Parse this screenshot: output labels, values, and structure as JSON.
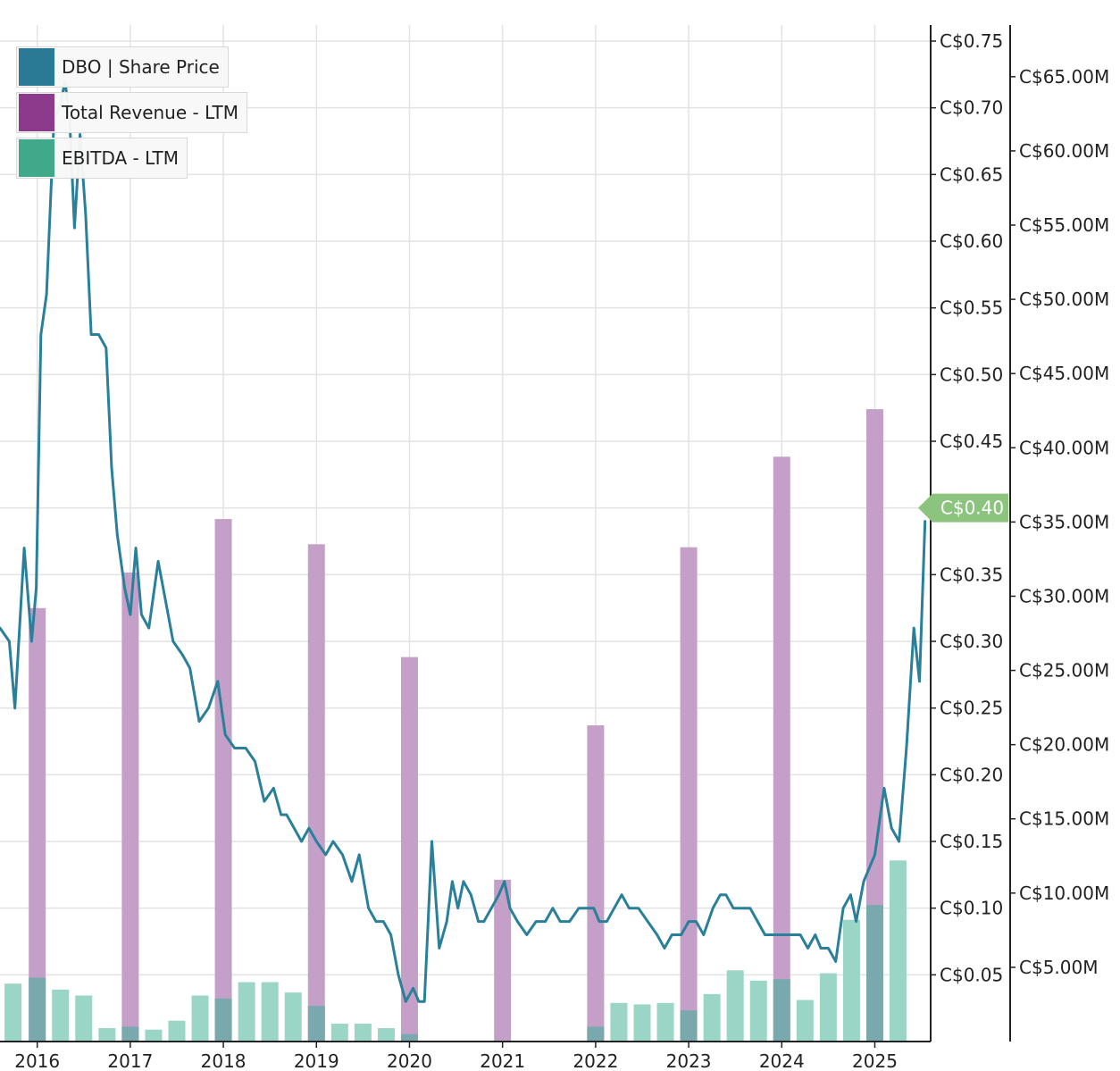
{
  "chart_data": {
    "type": "bar",
    "title": "",
    "xlabel": "",
    "ylabel": "",
    "x_range": [
      2015.7,
      2025.7
    ],
    "x_ticks": [
      "2016",
      "2017",
      "2018",
      "2019",
      "2020",
      "2021",
      "2022",
      "2023",
      "2024",
      "2025"
    ],
    "y_left": {
      "range": [
        0.0,
        0.75
      ],
      "ticks": [
        0.05,
        0.1,
        0.15,
        0.2,
        0.25,
        0.3,
        0.35,
        0.4,
        0.45,
        0.5,
        0.55,
        0.6,
        0.65,
        0.7,
        0.75
      ],
      "tick_labels": [
        "C$0.05",
        "C$0.10",
        "C$0.15",
        "C$0.20",
        "C$0.25",
        "C$0.30",
        "C$0.35",
        "C$0.40",
        "C$0.45",
        "C$0.50",
        "C$0.55",
        "C$0.60",
        "C$0.65",
        "C$0.70",
        "C$0.75"
      ]
    },
    "y_right": {
      "range": [
        0,
        68
      ],
      "ticks": [
        5,
        10,
        15,
        20,
        25,
        30,
        35,
        40,
        45,
        50,
        55,
        60,
        65
      ],
      "tick_labels": [
        "C$5.00M",
        "C$10.00M",
        "C$15.00M",
        "C$20.00M",
        "C$25.00M",
        "C$30.00M",
        "C$35.00M",
        "C$40.00M",
        "C$45.00M",
        "C$50.00M",
        "C$55.00M",
        "C$60.00M",
        "C$65.00M"
      ]
    },
    "legend": {
      "position": "top-left",
      "entries": [
        "DBO | Share Price",
        "Total Revenue - LTM",
        "EBITDA - LTM"
      ]
    },
    "colors": {
      "price": "#2a7f99",
      "revenue": "#c4a0c9",
      "ebitda": "#9bd5c5",
      "overlap": "#7aa9ad",
      "price_badge": "#8cc47f",
      "grid": "#e3e3e3",
      "axis": "#222222",
      "legend_price": "#2a7a96",
      "legend_revenue": "#8c3b8c",
      "legend_ebitda": "#3fa98a"
    },
    "current_price": {
      "value": 0.4,
      "label": "C$0.40"
    },
    "series": [
      {
        "name": "Total Revenue - LTM",
        "type": "bar",
        "axis": "right",
        "x": [
          2016.1,
          2017.1,
          2018.1,
          2019.1,
          2020.1,
          2021.1,
          2022.1,
          2023.1,
          2024.1,
          2025.1
        ],
        "values": [
          29.2,
          31.6,
          35.2,
          33.5,
          25.9,
          10.9,
          21.3,
          33.3,
          39.4,
          42.6
        ]
      },
      {
        "name": "EBITDA - LTM",
        "type": "bar",
        "axis": "right",
        "x": [
          2015.84,
          2016.1,
          2016.35,
          2016.6,
          2016.85,
          2017.1,
          2017.35,
          2017.6,
          2017.85,
          2018.1,
          2018.35,
          2018.6,
          2018.85,
          2019.1,
          2019.35,
          2019.6,
          2019.85,
          2020.1,
          2020.35,
          2020.6,
          2020.85,
          2021.1,
          2021.35,
          2021.6,
          2021.85,
          2022.1,
          2022.35,
          2022.6,
          2022.85,
          2023.1,
          2023.35,
          2023.6,
          2023.85,
          2024.1,
          2024.35,
          2024.6,
          2024.85,
          2025.1,
          2025.35
        ],
        "values": [
          3.9,
          4.3,
          3.5,
          3.1,
          0.9,
          1.0,
          0.8,
          1.4,
          3.1,
          2.9,
          4.0,
          4.0,
          3.3,
          2.4,
          1.2,
          1.2,
          0.9,
          0.5,
          0.0,
          0.0,
          0.0,
          0.0,
          0.0,
          0.0,
          0.0,
          1.0,
          2.6,
          2.5,
          2.6,
          2.1,
          3.2,
          4.8,
          4.1,
          4.2,
          2.8,
          4.6,
          8.2,
          9.2,
          12.2
        ]
      },
      {
        "name": "DBO | Share Price",
        "type": "line",
        "axis": "left",
        "x": [
          2015.7,
          2015.8,
          2015.86,
          2015.96,
          2016.04,
          2016.09,
          2016.14,
          2016.2,
          2016.28,
          2016.34,
          2016.4,
          2016.45,
          2016.5,
          2016.56,
          2016.62,
          2016.68,
          2016.76,
          2016.84,
          2016.9,
          2016.96,
          2017.04,
          2017.1,
          2017.16,
          2017.22,
          2017.3,
          2017.4,
          2017.48,
          2017.56,
          2017.66,
          2017.74,
          2017.84,
          2017.94,
          2018.04,
          2018.12,
          2018.22,
          2018.34,
          2018.44,
          2018.54,
          2018.64,
          2018.72,
          2018.78,
          2018.86,
          2018.94,
          2019.02,
          2019.1,
          2019.2,
          2019.28,
          2019.38,
          2019.48,
          2019.56,
          2019.66,
          2019.74,
          2019.82,
          2019.9,
          2019.98,
          2020.06,
          2020.14,
          2020.2,
          2020.26,
          2020.34,
          2020.42,
          2020.5,
          2020.56,
          2020.62,
          2020.68,
          2020.76,
          2020.84,
          2020.9,
          2020.98,
          2021.06,
          2021.12,
          2021.18,
          2021.26,
          2021.36,
          2021.46,
          2021.56,
          2021.64,
          2021.72,
          2021.82,
          2021.92,
          2022.02,
          2022.08,
          2022.14,
          2022.22,
          2022.3,
          2022.38,
          2022.46,
          2022.56,
          2022.66,
          2022.76,
          2022.84,
          2022.92,
          2023.02,
          2023.1,
          2023.18,
          2023.26,
          2023.36,
          2023.44,
          2023.5,
          2023.58,
          2023.66,
          2023.76,
          2023.84,
          2023.92,
          2024.0,
          2024.08,
          2024.16,
          2024.22,
          2024.3,
          2024.38,
          2024.46,
          2024.52,
          2024.6,
          2024.68,
          2024.76,
          2024.84,
          2024.9,
          2024.98,
          2025.04,
          2025.1,
          2025.2,
          2025.28,
          2025.36,
          2025.44,
          2025.52,
          2025.58,
          2025.64
        ],
        "values": [
          0.31,
          0.3,
          0.25,
          0.37,
          0.3,
          0.34,
          0.53,
          0.56,
          0.69,
          0.7,
          0.72,
          0.69,
          0.61,
          0.68,
          0.62,
          0.53,
          0.53,
          0.52,
          0.43,
          0.38,
          0.34,
          0.32,
          0.37,
          0.32,
          0.31,
          0.36,
          0.33,
          0.3,
          0.29,
          0.28,
          0.24,
          0.25,
          0.27,
          0.23,
          0.22,
          0.22,
          0.21,
          0.18,
          0.19,
          0.17,
          0.17,
          0.16,
          0.15,
          0.16,
          0.15,
          0.14,
          0.15,
          0.14,
          0.12,
          0.14,
          0.1,
          0.09,
          0.09,
          0.08,
          0.05,
          0.03,
          0.04,
          0.03,
          0.03,
          0.15,
          0.07,
          0.09,
          0.12,
          0.1,
          0.12,
          0.11,
          0.09,
          0.09,
          0.1,
          0.11,
          0.12,
          0.1,
          0.09,
          0.08,
          0.09,
          0.09,
          0.1,
          0.09,
          0.09,
          0.1,
          0.1,
          0.1,
          0.09,
          0.09,
          0.1,
          0.11,
          0.1,
          0.1,
          0.09,
          0.08,
          0.07,
          0.08,
          0.08,
          0.09,
          0.09,
          0.08,
          0.1,
          0.11,
          0.11,
          0.1,
          0.1,
          0.1,
          0.09,
          0.08,
          0.08,
          0.08,
          0.08,
          0.08,
          0.08,
          0.07,
          0.08,
          0.07,
          0.07,
          0.06,
          0.1,
          0.11,
          0.09,
          0.12,
          0.13,
          0.14,
          0.19,
          0.16,
          0.15,
          0.22,
          0.31,
          0.27,
          0.39
        ]
      }
    ]
  }
}
